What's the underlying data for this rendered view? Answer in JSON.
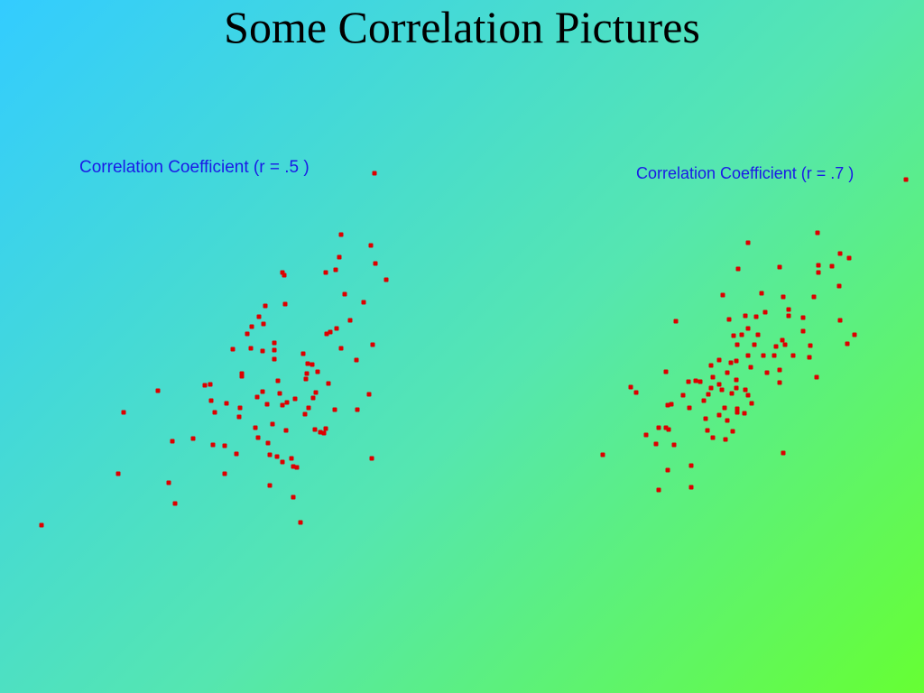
{
  "title": "Some Correlation Pictures",
  "chart_data": [
    {
      "type": "scatter",
      "title": "Correlation Coefficient (r = .5 )",
      "color": "#dd0000",
      "xlim": [
        0,
        400
      ],
      "ylim": [
        0,
        420
      ],
      "x": [
        6,
        91,
        97,
        135,
        147,
        154,
        151,
        174,
        196,
        209,
        209,
        222,
        187,
        193,
        194,
        198,
        211,
        226,
        225,
        218,
        228,
        228,
        238,
        234,
        239,
        247,
        252,
        254,
        251,
        264,
        264,
        264,
        275,
        273,
        276,
        321,
        332,
        338,
        336,
        371,
        376,
        388,
        342,
        363,
        348,
        333,
        326,
        322,
        338,
        296,
        301,
        306,
        300,
        299,
        312,
        310,
        307,
        324,
        355,
        373,
        369,
        356,
        331,
        372,
        251,
        256,
        245,
        268,
        270,
        273,
        278,
        287,
        298,
        302,
        309,
        315,
        319,
        321,
        277,
        262,
        243,
        257,
        246,
        267,
        273,
        259,
        283,
        285,
        289,
        259,
        285,
        293,
        375
      ],
      "y": [
        18,
        75,
        143,
        167,
        65,
        42,
        111,
        114,
        107,
        106,
        75,
        97,
        173,
        174,
        156,
        143,
        153,
        148,
        138,
        213,
        186,
        183,
        214,
        230,
        238,
        249,
        241,
        261,
        211,
        220,
        212,
        202,
        295,
        298,
        263,
        298,
        301,
        340,
        315,
        328,
        308,
        290,
        274,
        265,
        245,
        236,
        232,
        230,
        214,
        208,
        197,
        196,
        186,
        180,
        188,
        165,
        159,
        175,
        201,
        218,
        163,
        146,
        146,
        92,
        166,
        152,
        160,
        178,
        164,
        151,
        154,
        158,
        141,
        148,
        124,
        121,
        120,
        125,
        123,
        130,
        126,
        109,
        115,
        94,
        88,
        96,
        92,
        83,
        82,
        62,
        49,
        21,
        408
      ]
    },
    {
      "type": "scatter",
      "title": "Correlation Coefficient (r = .7 )",
      "color": "#dd0000",
      "xlim": [
        0,
        350
      ],
      "ylim": [
        0,
        380
      ],
      "x": [
        8,
        39,
        45,
        56,
        67,
        70,
        80,
        87,
        78,
        81,
        70,
        80,
        84,
        78,
        89,
        106,
        106,
        97,
        103,
        111,
        116,
        104,
        120,
        122,
        125,
        128,
        130,
        137,
        128,
        137,
        146,
        150,
        141,
        148,
        153,
        157,
        156,
        162,
        166,
        169,
        178,
        184,
        188,
        158,
        169,
        204,
        246,
        247,
        247,
        262,
        271,
        281,
        270,
        242,
        208,
        214,
        214,
        230,
        230,
        207,
        210,
        219,
        200,
        198,
        186,
        176,
        180,
        169,
        172,
        156,
        156,
        166,
        169,
        151,
        140,
        143,
        137,
        146,
        157,
        157,
        165,
        173,
        152,
        144,
        130,
        124,
        204,
        204,
        190,
        238,
        237,
        245,
        279,
        287,
        271,
        208,
        344
      ],
      "y": [
        56,
        131,
        125,
        78,
        68,
        17,
        39,
        67,
        86,
        84,
        86,
        111,
        112,
        148,
        204,
        20,
        44,
        122,
        137,
        138,
        137,
        108,
        116,
        96,
        123,
        130,
        142,
        134,
        155,
        161,
        147,
        158,
        233,
        206,
        188,
        178,
        160,
        189,
        210,
        196,
        209,
        235,
        214,
        262,
        291,
        264,
        302,
        266,
        258,
        265,
        279,
        274,
        243,
        231,
        231,
        217,
        210,
        208,
        193,
        183,
        178,
        166,
        176,
        166,
        166,
        178,
        189,
        166,
        153,
        139,
        130,
        128,
        122,
        124,
        128,
        108,
        100,
        94,
        107,
        103,
        102,
        113,
        82,
        73,
        75,
        83,
        150,
        136,
        147,
        177,
        164,
        142,
        179,
        189,
        205,
        58,
        361
      ]
    }
  ]
}
